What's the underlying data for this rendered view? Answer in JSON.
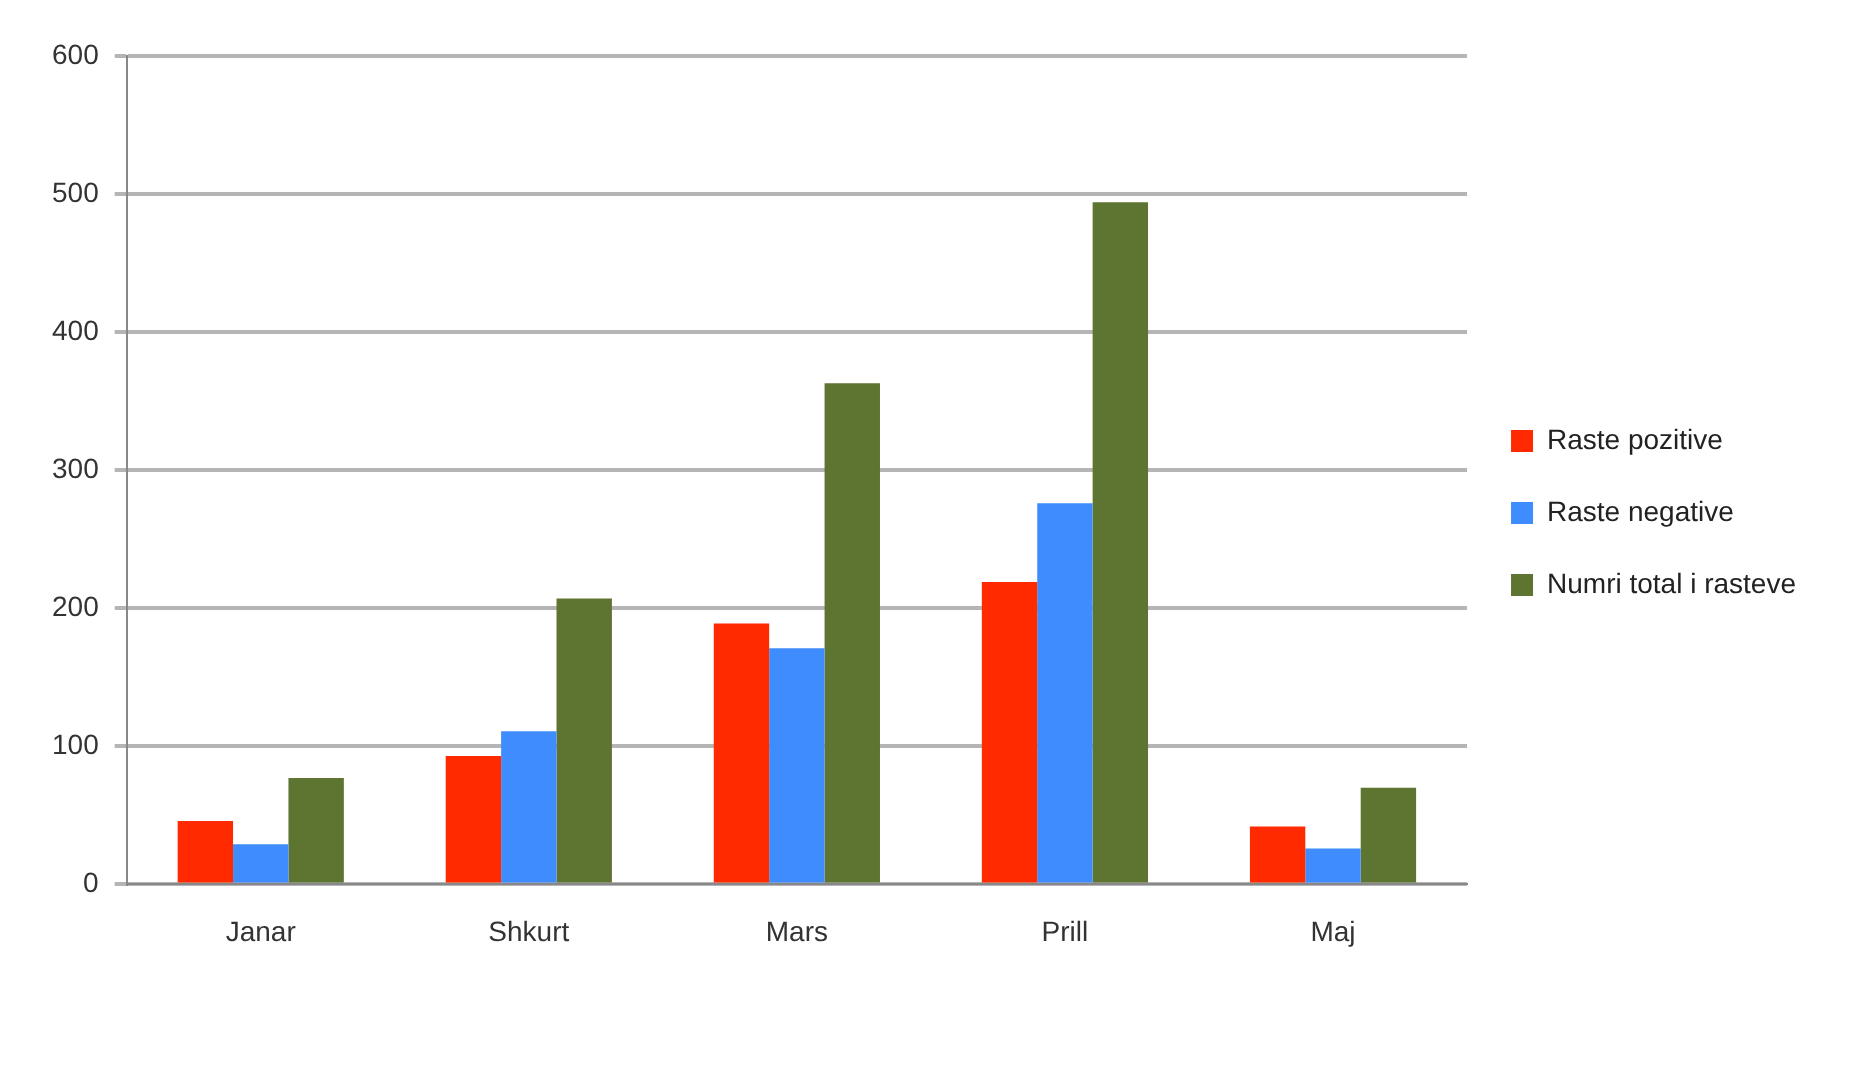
{
  "chart_data": {
    "type": "bar",
    "categories": [
      "Janar",
      "Shkurt",
      "Mars",
      "Prill",
      "Maj"
    ],
    "series": [
      {
        "name": "Raste pozitive",
        "color": "#ff2a00",
        "values": [
          46,
          93,
          189,
          219,
          42
        ]
      },
      {
        "name": "Raste negative",
        "color": "#3f8cff",
        "values": [
          29,
          111,
          171,
          276,
          26
        ]
      },
      {
        "name": "Numri total i rasteve",
        "color": "#5e7431",
        "values": [
          77,
          207,
          363,
          494,
          70
        ]
      }
    ],
    "ylim": [
      0,
      600
    ],
    "yticks": [
      0,
      100,
      200,
      300,
      400,
      500,
      600
    ],
    "grid": "y",
    "legend": "right"
  }
}
